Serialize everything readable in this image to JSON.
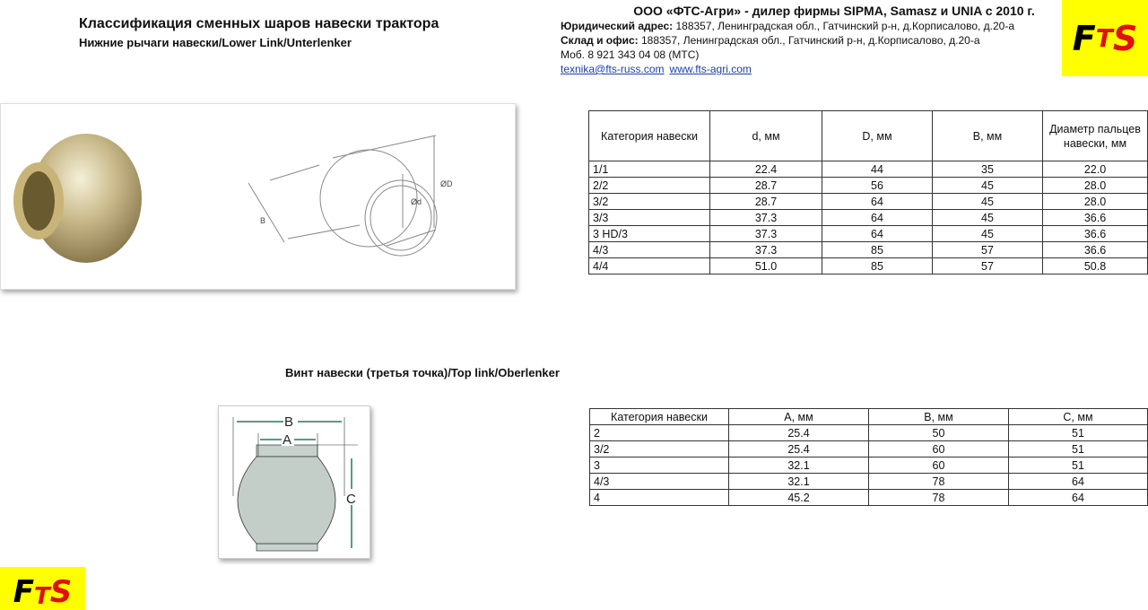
{
  "header": {
    "title": "Классификация сменных шаров навески трактора",
    "subtitle": "Нижние рычаги навески/Lower Link/Unterlenker"
  },
  "company": {
    "name": "ООО «ФТС-Агри» - дилер фирмы SIPMA, Samasz и UNIA с 2010 г.",
    "legal_label": "Юридический адрес:",
    "legal_address": " 188357, Ленинградская обл., Гатчинский р-н, д.Корписалово, д.20-а",
    "office_label": "Склад и офис:",
    "office_address": " 188357, Ленинградская обл., Гатчинский р-н, д.Корписалово, д.20-а",
    "phone": "Моб. 8 921 343 04 08 (МТС)",
    "email": "texnika@fts-russ.com",
    "website": "www.fts-agri.com"
  },
  "logo": {
    "text_f": "F",
    "text_t": "T",
    "text_s": "S",
    "background": "#ffff00"
  },
  "lower_link": {
    "diagram_labels": {
      "B": "B",
      "d": "Ød",
      "D": "ØD"
    },
    "columns": [
      "Категория навески",
      "d, мм",
      "D, мм",
      "B, мм",
      "Диаметр пальцев навески, мм"
    ],
    "rows": [
      [
        "1/1",
        "22.4",
        "44",
        "35",
        "22.0"
      ],
      [
        "2/2",
        "28.7",
        "56",
        "45",
        "28.0"
      ],
      [
        "3/2",
        "28.7",
        "64",
        "45",
        "28.0"
      ],
      [
        "3/3",
        "37.3",
        "64",
        "45",
        "36.6"
      ],
      [
        "3 HD/3",
        "37.3",
        "64",
        "45",
        "36.6"
      ],
      [
        "4/3",
        "37.3",
        "85",
        "57",
        "36.6"
      ],
      [
        "4/4",
        "51.0",
        "85",
        "57",
        "50.8"
      ]
    ]
  },
  "top_link": {
    "title": "Винт навески (третья точка)/Top link/Oberlenker",
    "diagram_labels": {
      "A": "A",
      "B": "B",
      "C": "C"
    },
    "columns": [
      "Категория навески",
      "A, мм",
      "B, мм",
      "C, мм"
    ],
    "rows": [
      [
        "2",
        "25.4",
        "50",
        "51"
      ],
      [
        "3/2",
        "25.4",
        "60",
        "51"
      ],
      [
        "3",
        "32.1",
        "60",
        "51"
      ],
      [
        "4/3",
        "32.1",
        "78",
        "64"
      ],
      [
        "4",
        "45.2",
        "78",
        "64"
      ]
    ]
  }
}
